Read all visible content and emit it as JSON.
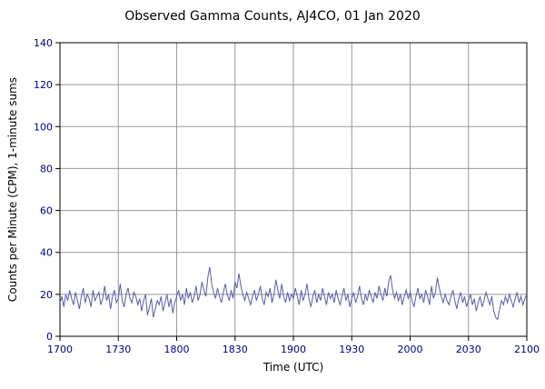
{
  "chart_data": {
    "type": "line",
    "title": "Observed Gamma Counts, AJ4CO, 01 Jan 2020",
    "xlabel": "Time (UTC)",
    "ylabel": "Counts per Minute (CPM), 1-minute sums",
    "x_tick_labels": [
      "1700",
      "1730",
      "1800",
      "1830",
      "1900",
      "1930",
      "2000",
      "2030",
      "2100"
    ],
    "x_tick_minutes": [
      0,
      30,
      60,
      90,
      120,
      150,
      180,
      210,
      240
    ],
    "y_ticks": [
      0,
      20,
      40,
      60,
      80,
      100,
      120,
      140
    ],
    "xlim": [
      0,
      240
    ],
    "ylim": [
      0,
      140
    ],
    "grid": true,
    "legend": "none",
    "line_color": "#5b5baa",
    "grid_color": "#999999",
    "frame_color": "#000000",
    "tick_label_color": "#000080",
    "values": [
      16,
      19,
      14,
      20,
      17,
      22,
      18,
      15,
      21,
      17,
      13,
      19,
      23,
      16,
      20,
      18,
      14,
      22,
      17,
      19,
      21,
      15,
      18,
      24,
      17,
      20,
      13,
      19,
      22,
      16,
      18,
      25,
      17,
      14,
      20,
      23,
      18,
      16,
      21,
      19,
      15,
      18,
      12,
      17,
      20,
      10,
      14,
      18,
      9,
      13,
      17,
      15,
      19,
      12,
      16,
      20,
      14,
      18,
      11,
      16,
      19,
      22,
      17,
      20,
      15,
      23,
      18,
      21,
      16,
      19,
      24,
      17,
      20,
      26,
      22,
      19,
      28,
      33,
      25,
      21,
      18,
      23,
      19,
      16,
      21,
      25,
      20,
      17,
      22,
      18,
      26,
      23,
      30,
      24,
      20,
      17,
      21,
      18,
      15,
      19,
      22,
      17,
      20,
      24,
      18,
      15,
      21,
      19,
      23,
      16,
      20,
      27,
      22,
      18,
      25,
      19,
      16,
      21,
      17,
      20,
      18,
      23,
      19,
      15,
      22,
      17,
      20,
      25,
      18,
      14,
      19,
      22,
      16,
      20,
      17,
      23,
      19,
      15,
      21,
      18,
      20,
      16,
      22,
      18,
      15,
      19,
      23,
      17,
      20,
      14,
      18,
      21,
      16,
      19,
      24,
      18,
      15,
      20,
      17,
      22,
      19,
      16,
      21,
      18,
      24,
      20,
      17,
      23,
      19,
      26,
      29,
      22,
      18,
      21,
      17,
      20,
      15,
      19,
      22,
      18,
      21,
      17,
      14,
      19,
      23,
      18,
      20,
      16,
      22,
      19,
      15,
      24,
      18,
      21,
      28,
      23,
      19,
      16,
      20,
      17,
      15,
      19,
      22,
      17,
      13,
      18,
      21,
      16,
      19,
      14,
      17,
      20,
      15,
      18,
      12,
      16,
      19,
      14,
      17,
      21,
      18,
      15,
      19,
      12,
      9,
      8,
      13,
      17,
      15,
      19,
      16,
      20,
      17,
      14,
      18,
      21,
      16,
      19,
      15,
      18,
      20
    ]
  }
}
